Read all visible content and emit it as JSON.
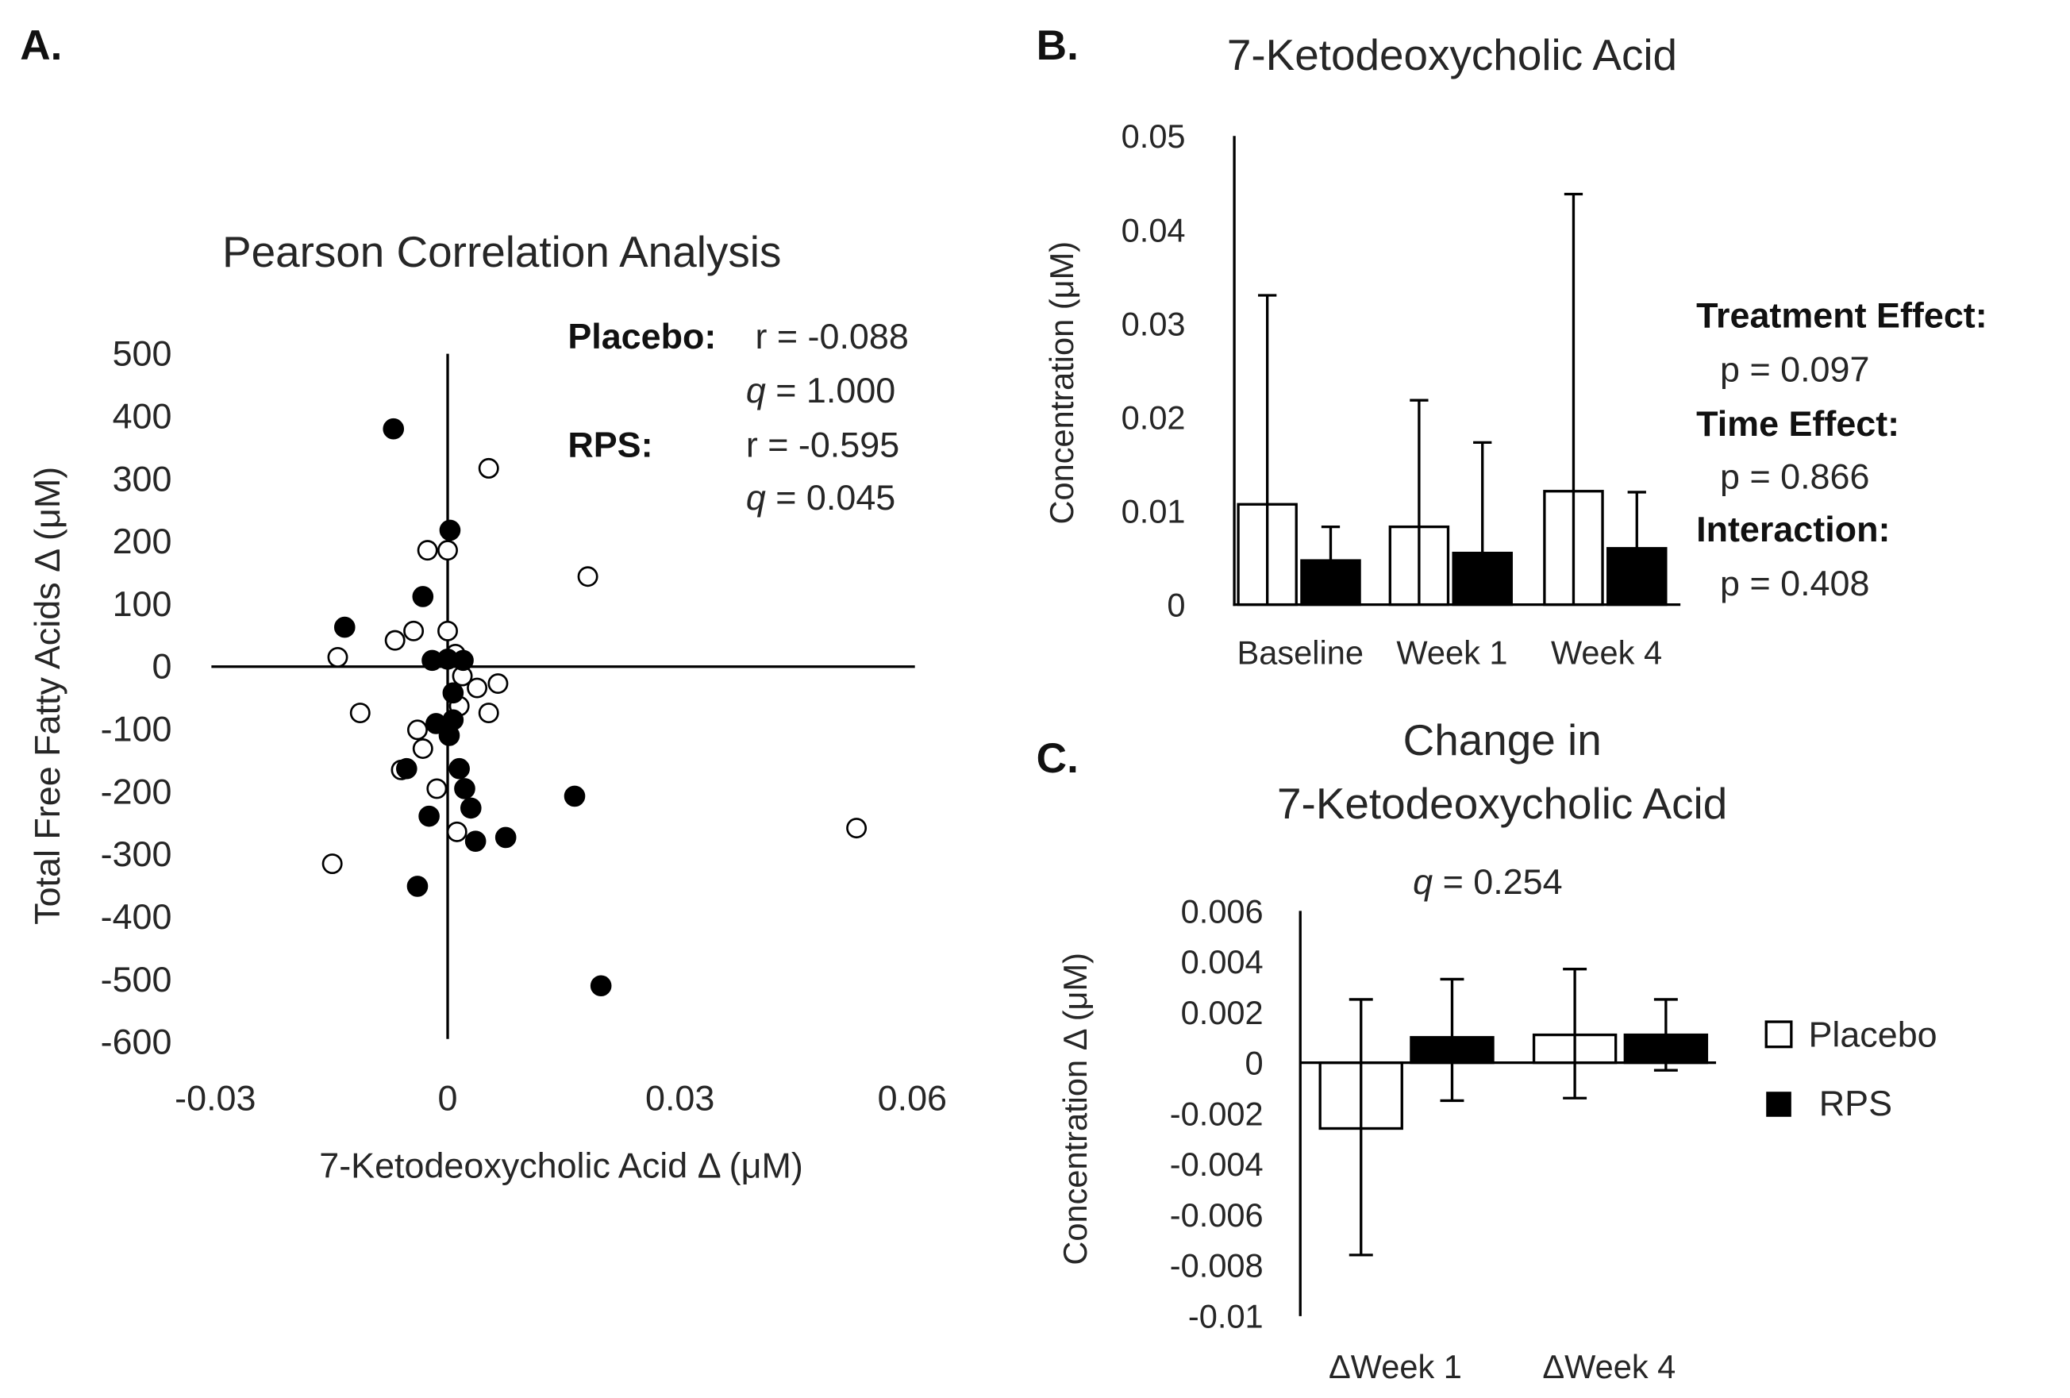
{
  "panels": {
    "a": "A.",
    "b": "B.",
    "c": "C."
  },
  "chart_data": [
    {
      "type": "scatter",
      "title": "Pearson Correlation Analysis",
      "xlabel": "7-Ketodeoxycholic Acid Δ (μM)",
      "ylabel": "Total Free Fatty Acids Δ (μM)",
      "xlim": [
        -0.03,
        0.06
      ],
      "ylim": [
        -600,
        500
      ],
      "xticks": [
        "-0.03",
        "0",
        "0.03",
        "0.06"
      ],
      "yticks": [
        "500",
        "400",
        "300",
        "200",
        "100",
        "0",
        "-100",
        "-200",
        "-300",
        "-400",
        "-500",
        "-600"
      ],
      "annotations": {
        "placebo_label": "Placebo:",
        "placebo_r": "r = -0.088",
        "placebo_q_sym": "q",
        "placebo_q": " = 1.000",
        "rps_label": "RPS:",
        "rps_r": "r = -0.595",
        "rps_q_sym": "q",
        "rps_q": " = 0.045"
      },
      "series": [
        {
          "name": "RPS",
          "marker": "filled",
          "points": [
            [
              -0.007,
              380
            ],
            [
              0.0003,
              218
            ],
            [
              -0.0032,
              112
            ],
            [
              -0.0133,
              63
            ],
            [
              -0.002,
              10
            ],
            [
              0.0,
              12
            ],
            [
              0.002,
              10
            ],
            [
              0.0007,
              -42
            ],
            [
              0.0007,
              -85
            ],
            [
              -0.0015,
              -91
            ],
            [
              0.0002,
              -110
            ],
            [
              -0.0053,
              -163
            ],
            [
              0.0015,
              -163
            ],
            [
              0.0022,
              -195
            ],
            [
              0.003,
              -226
            ],
            [
              -0.0024,
              -239
            ],
            [
              0.0036,
              -279
            ],
            [
              0.0075,
              -273
            ],
            [
              0.0164,
              -207
            ],
            [
              -0.0039,
              -351
            ],
            [
              0.0198,
              -510
            ]
          ]
        },
        {
          "name": "Placebo",
          "marker": "open",
          "points": [
            [
              0.0053,
              317
            ],
            [
              0.0181,
              144
            ],
            [
              -0.0026,
              186
            ],
            [
              0.0,
              186
            ],
            [
              -0.0068,
              42
            ],
            [
              -0.0044,
              57
            ],
            [
              0.0,
              57
            ],
            [
              -0.0142,
              15
            ],
            [
              0.001,
              20
            ],
            [
              0.0019,
              -15
            ],
            [
              0.0038,
              -34
            ],
            [
              0.0065,
              -27
            ],
            [
              -0.0113,
              -74
            ],
            [
              0.0053,
              -74
            ],
            [
              0.0015,
              -63
            ],
            [
              -0.0039,
              -101
            ],
            [
              -0.0032,
              -131
            ],
            [
              -0.006,
              -165
            ],
            [
              -0.0014,
              -195
            ],
            [
              0.0012,
              -264
            ],
            [
              -0.0149,
              -315
            ],
            [
              0.0528,
              -258
            ]
          ]
        }
      ]
    },
    {
      "type": "bar",
      "title": "7-Ketodeoxycholic Acid",
      "ylabel": "Concentration  (μM)",
      "ylim": [
        0,
        0.05
      ],
      "yticks": [
        "0.05",
        "0.04",
        "0.03",
        "0.02",
        "0.01",
        "0"
      ],
      "categories": [
        "Baseline",
        "Week 1",
        "Week 4"
      ],
      "series": [
        {
          "name": "Placebo",
          "values": [
            0.0107,
            0.0083,
            0.0121
          ],
          "error_upper": [
            0.033,
            0.0218,
            0.0438
          ]
        },
        {
          "name": "RPS",
          "values": [
            0.0047,
            0.0055,
            0.006
          ],
          "error_upper": [
            0.0083,
            0.0173,
            0.012
          ]
        }
      ],
      "stats": {
        "treatment_label": "Treatment Effect:",
        "treatment_p": "p = 0.097",
        "time_label": "Time Effect:",
        "time_p": "p = 0.866",
        "interaction_label": "Interaction:",
        "interaction_p": "p = 0.408"
      }
    },
    {
      "type": "bar",
      "title_line1": "Change in",
      "title_line2": "7-Ketodeoxycholic Acid",
      "q_sym": "q",
      "q_value": " = 0.254",
      "ylabel": "Concentration  Δ (μM)",
      "ylim": [
        -0.01,
        0.006
      ],
      "yticks": [
        "0.006",
        "0.004",
        "0.002",
        "0",
        "-0.002",
        "-0.004",
        "-0.006",
        "-0.008",
        "-0.01"
      ],
      "categories": [
        "ΔWeek 1",
        "ΔWeek 4"
      ],
      "series": [
        {
          "name": "Placebo",
          "values": [
            -0.0026,
            0.0011
          ],
          "error_low": [
            -0.0076,
            -0.0014
          ],
          "error_high": [
            0.0025,
            0.0037
          ]
        },
        {
          "name": "RPS",
          "values": [
            0.001,
            0.0011
          ],
          "error_low": [
            -0.0015,
            -0.0003
          ],
          "error_high": [
            0.0033,
            0.0025
          ]
        }
      ],
      "legend": {
        "placement": "right",
        "items": [
          "Placebo",
          "RPS"
        ]
      }
    }
  ]
}
